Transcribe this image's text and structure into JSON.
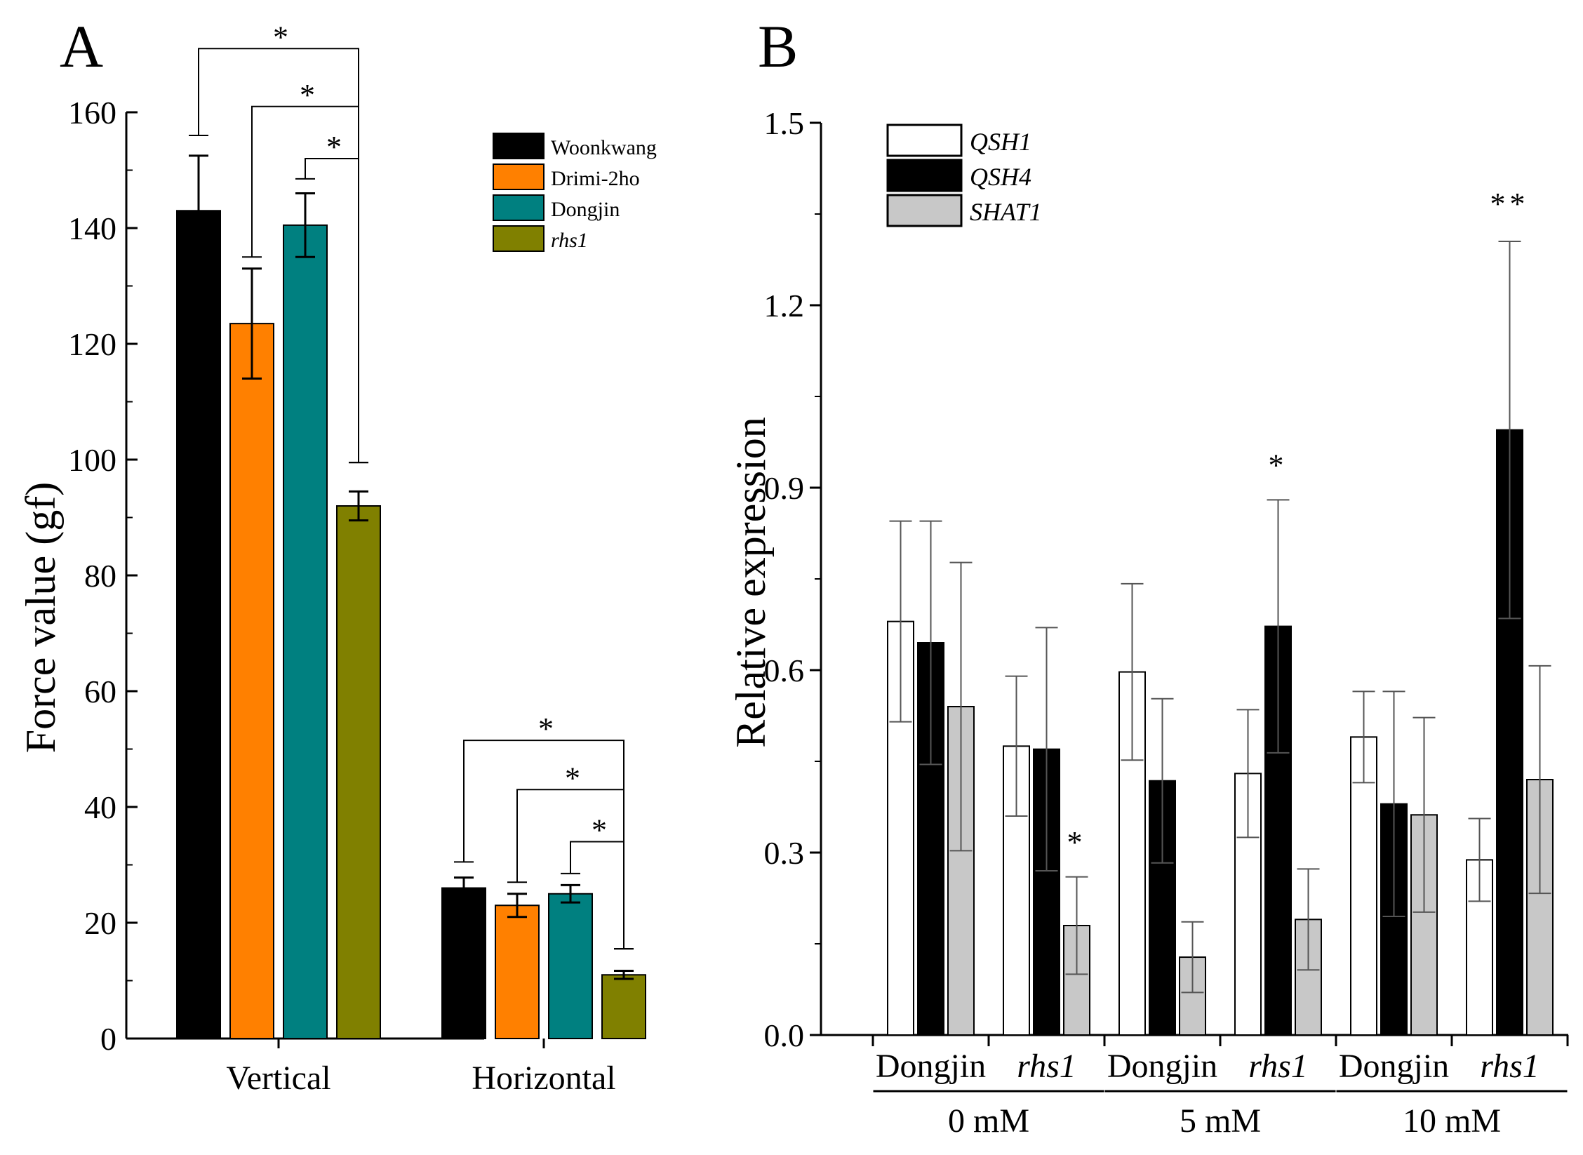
{
  "chart_data": [
    {
      "panel": "A",
      "type": "bar",
      "ylabel": "Force value (gf)",
      "ylim": [
        0,
        160
      ],
      "yticks": [
        0,
        20,
        40,
        60,
        80,
        100,
        120,
        140,
        160
      ],
      "categories": [
        "Vertical",
        "Horizontal"
      ],
      "series": [
        {
          "name": "Woonkwang",
          "italic": false,
          "color": "#000000",
          "values": [
            143,
            26
          ],
          "errors": [
            9.5,
            1.8
          ]
        },
        {
          "name": "Drimi-2ho",
          "italic": false,
          "color": "#ff8000",
          "values": [
            123.5,
            23
          ],
          "errors": [
            9.5,
            2
          ]
        },
        {
          "name": "Dongjin",
          "italic": false,
          "color": "#008080",
          "values": [
            140.5,
            25
          ],
          "errors": [
            5.5,
            1.5
          ]
        },
        {
          "name": "rhs1",
          "italic": true,
          "color": "#808000",
          "values": [
            92,
            11
          ],
          "errors": [
            2.5,
            0.7
          ]
        }
      ],
      "significance": [
        {
          "category": "Vertical",
          "from": "Woonkwang",
          "to": "rhs1",
          "label": "*",
          "from_value": 156,
          "to_value": 99.5,
          "line_value": 171
        },
        {
          "category": "Vertical",
          "from": "Drimi-2ho",
          "to": "rhs1",
          "label": "*",
          "from_value": 135,
          "to_value": 99.5,
          "line_value": 161
        },
        {
          "category": "Vertical",
          "from": "Dongjin",
          "to": "rhs1",
          "label": "*",
          "from_value": 148.5,
          "to_value": 99.5,
          "line_value": 152
        },
        {
          "category": "Horizontal",
          "from": "Woonkwang",
          "to": "rhs1",
          "label": "*",
          "from_value": 30.5,
          "to_value": 15.5,
          "line_value": 51.5
        },
        {
          "category": "Horizontal",
          "from": "Drimi-2ho",
          "to": "rhs1",
          "label": "*",
          "from_value": 27,
          "to_value": 15.5,
          "line_value": 43
        },
        {
          "category": "Horizontal",
          "from": "Dongjin",
          "to": "rhs1",
          "label": "*",
          "from_value": 28.5,
          "to_value": 15.5,
          "line_value": 34
        }
      ]
    },
    {
      "panel": "B",
      "type": "bar",
      "ylabel": "Relative expression",
      "ylim": [
        0,
        1.5
      ],
      "yticks": [
        "0.0",
        "0.3",
        "0.6",
        "0.9",
        "1.2",
        "1.5"
      ],
      "groups": [
        {
          "label": "0 mM",
          "subgroups": [
            {
              "label": "Dongjin",
              "italic": false
            },
            {
              "label": "rhs1",
              "italic": true
            }
          ]
        },
        {
          "label": "5 mM",
          "subgroups": [
            {
              "label": "Dongjin",
              "italic": false
            },
            {
              "label": "rhs1",
              "italic": true
            }
          ]
        },
        {
          "label": "10 mM",
          "subgroups": [
            {
              "label": "Dongjin",
              "italic": false
            },
            {
              "label": "rhs1",
              "italic": true
            }
          ]
        }
      ],
      "series": [
        {
          "name": "QSH1",
          "color": "#ffffff",
          "values": [
            0.68,
            0.475,
            0.597,
            0.43,
            0.49,
            0.288
          ],
          "errors": [
            0.165,
            0.115,
            0.145,
            0.105,
            0.075,
            0.068
          ]
        },
        {
          "name": "QSH4",
          "color": "#000000",
          "values": [
            0.645,
            0.47,
            0.418,
            0.672,
            0.38,
            0.995
          ],
          "errors": [
            0.2,
            0.2,
            0.135,
            0.208,
            0.185,
            0.31
          ]
        },
        {
          "name": "SHAT1",
          "color": "#c8c8c8",
          "values": [
            0.54,
            0.18,
            0.128,
            0.19,
            0.362,
            0.42
          ],
          "errors": [
            0.237,
            0.08,
            0.058,
            0.083,
            0.16,
            0.187
          ]
        }
      ],
      "significance": [
        {
          "index": 1,
          "series": "SHAT1",
          "label": "*",
          "value": 0.3
        },
        {
          "index": 3,
          "series": "QSH4",
          "label": "*",
          "value": 0.92
        },
        {
          "index": 5,
          "series": "QSH4",
          "label": "**",
          "value": 1.35
        }
      ]
    }
  ]
}
